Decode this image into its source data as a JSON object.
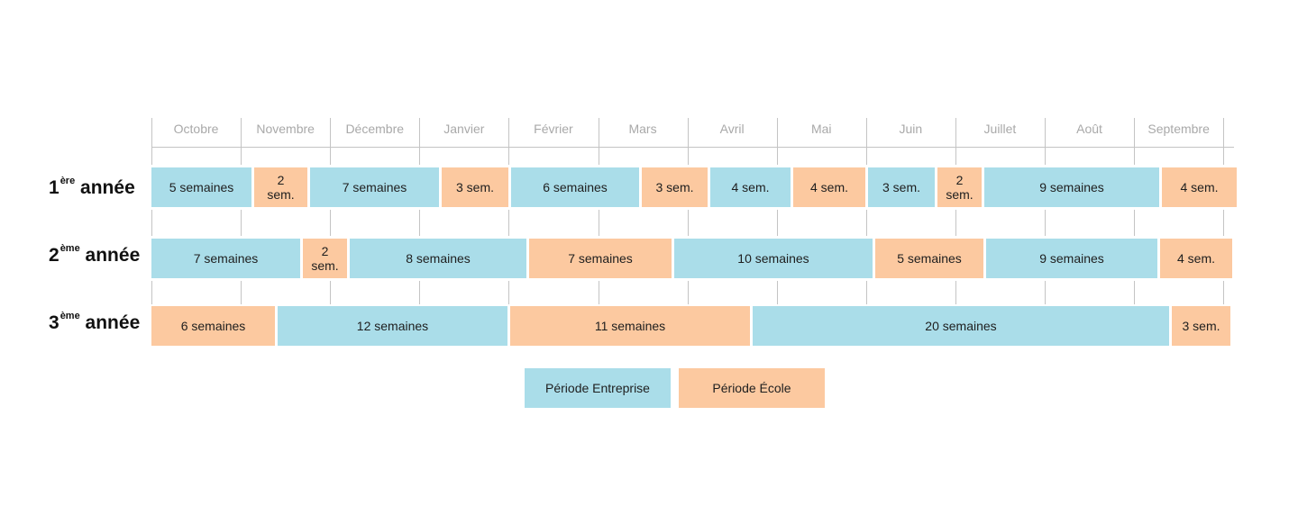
{
  "colors": {
    "entreprise": "#aadde9",
    "ecole": "#fcc9a0",
    "grid": "#c4c4c4",
    "month_text": "#a9a9a9"
  },
  "months": [
    "Octobre",
    "Novembre",
    "Décembre",
    "Janvier",
    "Février",
    "Mars",
    "Avril",
    "Mai",
    "Juin",
    "Juillet",
    "Août",
    "Septembre"
  ],
  "years": [
    {
      "label_main": "1",
      "label_sup": "ère",
      "label_rest": " année",
      "segments": [
        {
          "text": "5 semaines",
          "type": "entreprise",
          "weeks": 5
        },
        {
          "text": "2\nsem.",
          "type": "ecole",
          "weeks": 2
        },
        {
          "text": "7 semaines",
          "type": "entreprise",
          "weeks": 7
        },
        {
          "text": "3 sem.",
          "type": "ecole",
          "weeks": 3
        },
        {
          "text": "6 semaines",
          "type": "entreprise",
          "weeks": 6
        },
        {
          "text": "3 sem.",
          "type": "ecole",
          "weeks": 3
        },
        {
          "text": "4 sem.",
          "type": "entreprise",
          "weeks": 4
        },
        {
          "text": "4 sem.",
          "type": "ecole",
          "weeks": 4
        },
        {
          "text": "3 sem.",
          "type": "entreprise",
          "weeks": 3
        },
        {
          "text": "2\nsem.",
          "type": "ecole",
          "weeks": 2
        },
        {
          "text": "9 semaines",
          "type": "entreprise",
          "weeks": 9
        },
        {
          "text": "4 sem.",
          "type": "ecole",
          "weeks": 4
        }
      ]
    },
    {
      "label_main": "2",
      "label_sup": "ème",
      "label_rest": " année",
      "segments": [
        {
          "text": "7 semaines",
          "type": "entreprise",
          "weeks": 7
        },
        {
          "text": "2\nsem.",
          "type": "ecole",
          "weeks": 2
        },
        {
          "text": "8 semaines",
          "type": "entreprise",
          "weeks": 8
        },
        {
          "text": "7 semaines",
          "type": "ecole",
          "weeks": 7
        },
        {
          "text": "10 semaines",
          "type": "entreprise",
          "weeks": 10
        },
        {
          "text": "5 semaines",
          "type": "ecole",
          "weeks": 5
        },
        {
          "text": "9 semaines",
          "type": "entreprise",
          "weeks": 9
        },
        {
          "text": "4 sem.",
          "type": "ecole",
          "weeks": 4
        }
      ]
    },
    {
      "label_main": "3",
      "label_sup": "ème",
      "label_rest": " année",
      "segments": [
        {
          "text": "6 semaines",
          "type": "ecole",
          "weeks": 6
        },
        {
          "text": "12 semaines",
          "type": "entreprise",
          "weeks": 12
        },
        {
          "text": "11 semaines",
          "type": "ecole",
          "weeks": 11
        },
        {
          "text": "20 semaines",
          "type": "entreprise",
          "weeks": 20
        },
        {
          "text": "3 sem.",
          "type": "ecole",
          "weeks": 3
        }
      ]
    }
  ],
  "legend": [
    {
      "text": "Période Entreprise",
      "type": "entreprise"
    },
    {
      "text": "Période École",
      "type": "ecole"
    }
  ]
}
